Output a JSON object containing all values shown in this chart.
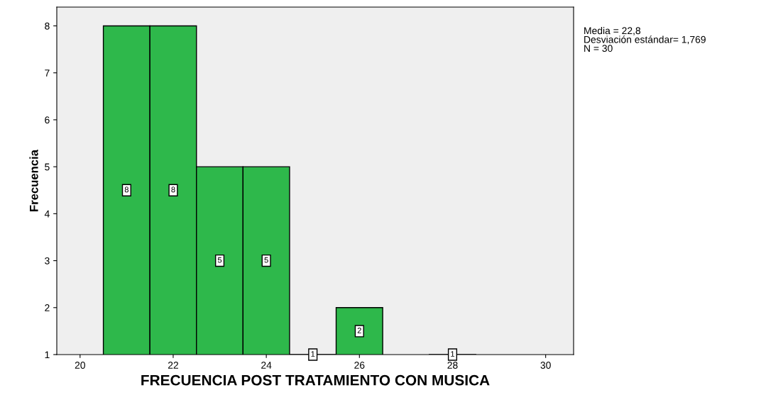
{
  "chart_data": {
    "type": "histogram",
    "xlabel": "FRECUENCIA POST TRATAMIENTO CON MUSICA",
    "ylabel": "Frecuencia",
    "bins": [
      20.5,
      21.5,
      22.5,
      23.5,
      24.5,
      25.5,
      26.5,
      27.5,
      28.5
    ],
    "values": [
      8,
      8,
      5,
      5,
      1,
      2,
      null,
      1
    ],
    "value_labels": [
      "8",
      "8",
      "5",
      "5",
      "1",
      "2",
      null,
      "1"
    ],
    "color": "#2eb84b",
    "xlim": [
      19.5,
      30.6
    ],
    "xticks": [
      20,
      22,
      24,
      26,
      28,
      30
    ],
    "ylim": [
      1,
      8.4
    ],
    "yticks": [
      1,
      2,
      3,
      4,
      5,
      6,
      7,
      8
    ],
    "grid": false,
    "annotations": [
      "Media = 22,8\nDesviación estándar= 1,769\nN = 30"
    ]
  }
}
